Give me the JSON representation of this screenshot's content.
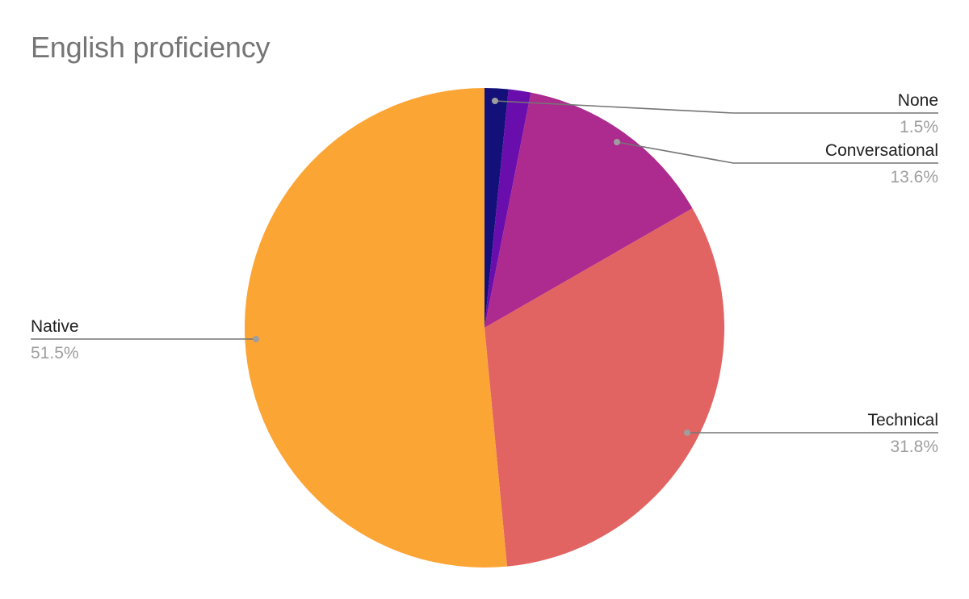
{
  "chart_data": {
    "type": "pie",
    "title": "English proficiency",
    "slices": [
      {
        "label": "",
        "value": 1.6,
        "value_label": "",
        "color": "#13107a"
      },
      {
        "label": "None",
        "value": 1.5,
        "value_label": "1.5%",
        "color": "#6a0dad"
      },
      {
        "label": "Conversational",
        "value": 13.6,
        "value_label": "13.6%",
        "color": "#ad2a8f"
      },
      {
        "label": "Technical",
        "value": 31.8,
        "value_label": "31.8%",
        "color": "#e16462"
      },
      {
        "label": "Native",
        "value": 51.5,
        "value_label": "51.5%",
        "color": "#fba535"
      }
    ],
    "start_angle": "12 o'clock",
    "direction": "clockwise",
    "legend": "none",
    "label_color": "#212121",
    "value_label_color": "#9e9e9e",
    "leader_line_color": "#757575"
  }
}
